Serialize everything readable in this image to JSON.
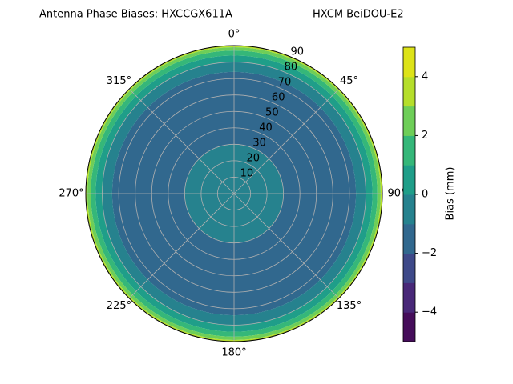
{
  "chart_data": {
    "type": "polar_contour",
    "title": "Antenna Phase Biases: HXCCGX611A",
    "subtitle": "HXCM BeiDOU-E2",
    "rlim": [
      0,
      90
    ],
    "rticks": [
      10,
      20,
      30,
      40,
      50,
      60,
      70,
      80,
      90
    ],
    "thetaticks": [
      {
        "value": 0,
        "label": "0°"
      },
      {
        "value": 45,
        "label": "45°"
      },
      {
        "value": 90,
        "label": "90°"
      },
      {
        "value": 135,
        "label": "135°"
      },
      {
        "value": 180,
        "label": "180°"
      },
      {
        "value": 225,
        "label": "225°"
      },
      {
        "value": 270,
        "label": "270°"
      },
      {
        "value": 315,
        "label": "315°"
      }
    ],
    "grid": true,
    "levels": [
      -5,
      -4,
      -3,
      -2,
      -1,
      0,
      1,
      2,
      3,
      4,
      5
    ],
    "colors": [
      "#450d5a",
      "#482878",
      "#3e4989",
      "#31688e",
      "#26828e",
      "#1f9e89",
      "#35b779",
      "#6ece58",
      "#b5de2b",
      "#dde318"
    ],
    "colorbar_label": "Bias (mm)",
    "cbticks": [
      {
        "value": -4,
        "label": "−4"
      },
      {
        "value": -2,
        "label": "−2"
      },
      0,
      2,
      4
    ],
    "rings": [
      {
        "r": [
          0,
          30
        ],
        "value": -0.5
      },
      {
        "r": [
          30,
          74
        ],
        "value": -1.5
      },
      {
        "r": [
          74,
          80
        ],
        "value": -0.5
      },
      {
        "r": [
          80,
          84
        ],
        "value": 0.5
      },
      {
        "r": [
          84,
          87
        ],
        "value": 1.5
      },
      {
        "r": [
          87,
          89
        ],
        "value": 2.5
      },
      {
        "r": [
          89,
          90
        ],
        "value": 3.5
      }
    ]
  }
}
